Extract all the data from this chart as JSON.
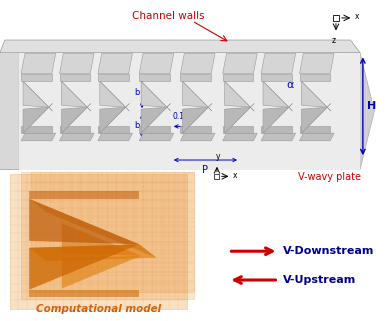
{
  "bg_color": "#ffffff",
  "channel_walls_label": "Channel walls",
  "channel_walls_color": "#cc0000",
  "vwavy_plate_label": "V-wavy plate",
  "vwavy_plate_color": "#cc0000",
  "dim_color": "#0000bb",
  "downstream_label": "V-Downstream",
  "upstream_label": "V-Upstream",
  "arrow_color": "#cc0000",
  "legend_text_color": "#00008b",
  "comp_model_label": "Computational model",
  "comp_model_label_color": "#cc5500",
  "mesh_color": "#e89030",
  "mesh_alpha": 0.35,
  "gray_light": "#e8e8e8",
  "gray_mid": "#cccccc",
  "gray_dark": "#aaaaaa",
  "plate_light": "#d8d8d8",
  "plate_mid": "#c0c0c0",
  "plate_shadow": "#a8a8a8"
}
